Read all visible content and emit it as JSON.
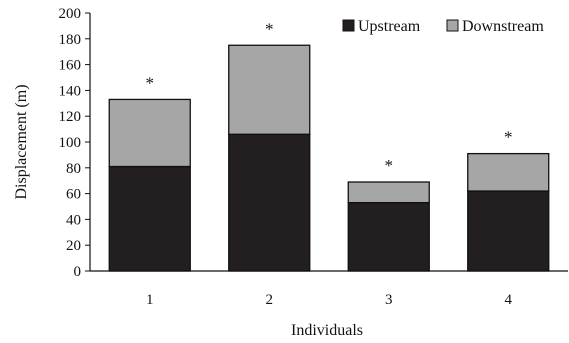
{
  "chart_data": {
    "type": "bar",
    "stacked": true,
    "categories": [
      "1",
      "2",
      "3",
      "4"
    ],
    "series": [
      {
        "name": "Upstream",
        "values": [
          81,
          106,
          53,
          62
        ],
        "color": "#231f20"
      },
      {
        "name": "Downstream",
        "values": [
          52,
          69,
          16,
          29
        ],
        "color": "#a6a6a6"
      }
    ],
    "annotations": [
      "*",
      "*",
      "*",
      "*"
    ],
    "xlabel": "Individuals",
    "ylabel": "Displacement (m)",
    "ylim": [
      0,
      200
    ],
    "yticks": [
      "0",
      "20",
      "40",
      "60",
      "80",
      "100",
      "120",
      "140",
      "160",
      "180",
      "200"
    ],
    "grid": false,
    "legend_position": "top-right"
  }
}
